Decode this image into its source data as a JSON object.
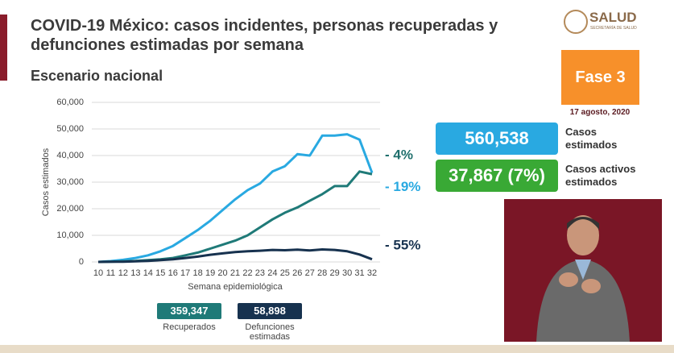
{
  "chart_data": {
    "type": "line",
    "title": "COVID-19 México: casos incidentes, personas recuperadas y defunciones estimadas por semana",
    "subtitle": "Escenario nacional",
    "x_label": "Semana epidemiológica",
    "y_label": "Casos estimados",
    "x": [
      10,
      11,
      12,
      13,
      14,
      15,
      16,
      17,
      18,
      19,
      20,
      21,
      22,
      23,
      24,
      25,
      26,
      27,
      28,
      29,
      30,
      31,
      32
    ],
    "xlim": [
      10,
      32
    ],
    "xticks": [
      10,
      11,
      12,
      13,
      14,
      15,
      16,
      17,
      18,
      19,
      20,
      21,
      22,
      23,
      24,
      25,
      26,
      27,
      28,
      29,
      30,
      31,
      32
    ],
    "ylim": [
      0,
      60000
    ],
    "yticks": [
      0,
      {
        "value": 10000,
        "label": "10,000"
      },
      {
        "value": 20000,
        "label": "20,000"
      },
      {
        "value": 30000,
        "label": "30,000"
      },
      {
        "value": 40000,
        "label": "40,000"
      },
      {
        "value": 50000,
        "label": "50,000"
      },
      {
        "value": 60000,
        "label": "60,000"
      }
    ],
    "grid": true,
    "series": [
      {
        "color": "#29a9e1",
        "values": [
          0,
          300,
          800,
          1500,
          2500,
          4000,
          6000,
          9000,
          12000,
          15500,
          19500,
          23500,
          27000,
          29500,
          34000,
          36000,
          40500,
          40000,
          47500,
          47500,
          48000,
          46000,
          33500
        ]
      },
      {
        "color": "#1f7a78",
        "values": [
          0,
          100,
          200,
          400,
          700,
          1000,
          1500,
          2500,
          3500,
          5000,
          6500,
          8000,
          10000,
          13000,
          16000,
          18500,
          20500,
          23000,
          25500,
          28500,
          28500,
          34000,
          33000
        ]
      },
      {
        "color": "#17324f",
        "values": [
          0,
          50,
          100,
          200,
          400,
          700,
          1000,
          1500,
          2000,
          2700,
          3200,
          3700,
          4000,
          4200,
          4500,
          4400,
          4600,
          4300,
          4700,
          4500,
          4000,
          2800,
          1000
        ]
      }
    ],
    "annotations": [
      {
        "text": "- 4%",
        "color": "#1f6f6c",
        "y": 40000
      },
      {
        "text": "- 19%",
        "color": "#29a9e1",
        "y": 28000
      },
      {
        "text": "- 55%",
        "color": "#17324f",
        "y": 6000
      }
    ]
  },
  "logo": {
    "name": "SALUD",
    "subtitle": "SECRETARÍA DE SALUD"
  },
  "phase": {
    "label": "Fase 3",
    "date": "17 agosto, 2020"
  },
  "stats": [
    {
      "value": "560,538",
      "label": "Casos estimados",
      "color": "#29a9e1"
    },
    {
      "value": "37,867 (7%)",
      "label": "Casos activos estimados",
      "color": "#39a935"
    }
  ],
  "totals": [
    {
      "value": "359,347",
      "label": "Recuperados",
      "color": "#1f7a78"
    },
    {
      "value": "58,898",
      "label": "Defunciones estimadas",
      "color": "#17324f"
    }
  ]
}
